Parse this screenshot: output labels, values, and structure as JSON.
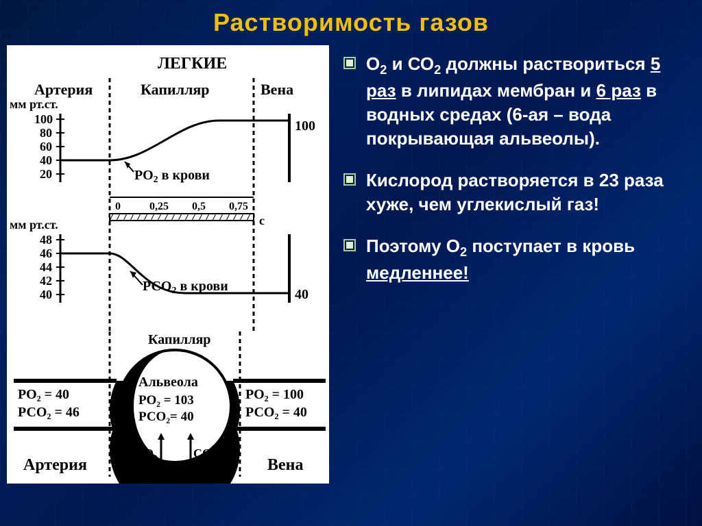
{
  "title": "Растворимость газов",
  "title_color": "#f0c000",
  "bullets": [
    {
      "html": "О<sub class='sub'>2</sub>  и СО<sub class='sub'>2</sub> должны раствориться <span class='underline'>5 раз</span> в липидах мембран и <span class='underline'>6 раз</span> в водных средах (6-ая – вода покрывающая альвеолы)."
    },
    {
      "html": "Кислород растворяется в 23 раза хуже, чем углекислый газ!"
    },
    {
      "html": "Поэтому О<sub class='sub'>2</sub> поступает в кровь <span class='underline'>медленнее!</span>"
    }
  ],
  "bullet_icon_stroke": "#a0d0a0",
  "bullet_icon_fill": "#e0f0d0",
  "diagram": {
    "header_lungs": "ЛЕГКИЕ",
    "col_artery": "Артерия",
    "col_capillary": "Капилляр",
    "col_vein": "Вена",
    "mm_label": "мм рт.ст.",
    "chart1": {
      "y_ticks": [
        20,
        40,
        60,
        80,
        100
      ],
      "y_start_value": 40,
      "y_end_value": 100,
      "right_label": "100",
      "curve_label": "РО",
      "curve_label_sub": "2",
      "curve_label_suffix": " в крови",
      "x_ticks": [
        "0",
        "0,25",
        "0,5",
        "0,75"
      ],
      "x_unit": "с"
    },
    "chart2": {
      "y_ticks": [
        40,
        42,
        44,
        46,
        48
      ],
      "y_start_value": 46,
      "y_end_value": 40,
      "right_label": "40",
      "curve_label": "РСО",
      "curve_label_sub": "2",
      "curve_label_suffix": " в крови"
    },
    "alveolus": {
      "capillary_label": "Капилляр",
      "alveola_label": "Альвеола",
      "inside_po2": "РО₂ = 103",
      "inside_pco2": "РСО₂= 40",
      "left_po2": "РО₂ = 40",
      "left_pco2": "РСО₂ = 46",
      "right_po2": "РО₂ = 100",
      "right_pco2": "РСО₂ = 40",
      "o2_label": "О₂",
      "co2_label": "СО₂",
      "artery_label": "Артерия",
      "vein_label": "Вена"
    },
    "colors": {
      "bg": "#ffffff",
      "stroke": "#000000",
      "text": "#000000"
    }
  }
}
